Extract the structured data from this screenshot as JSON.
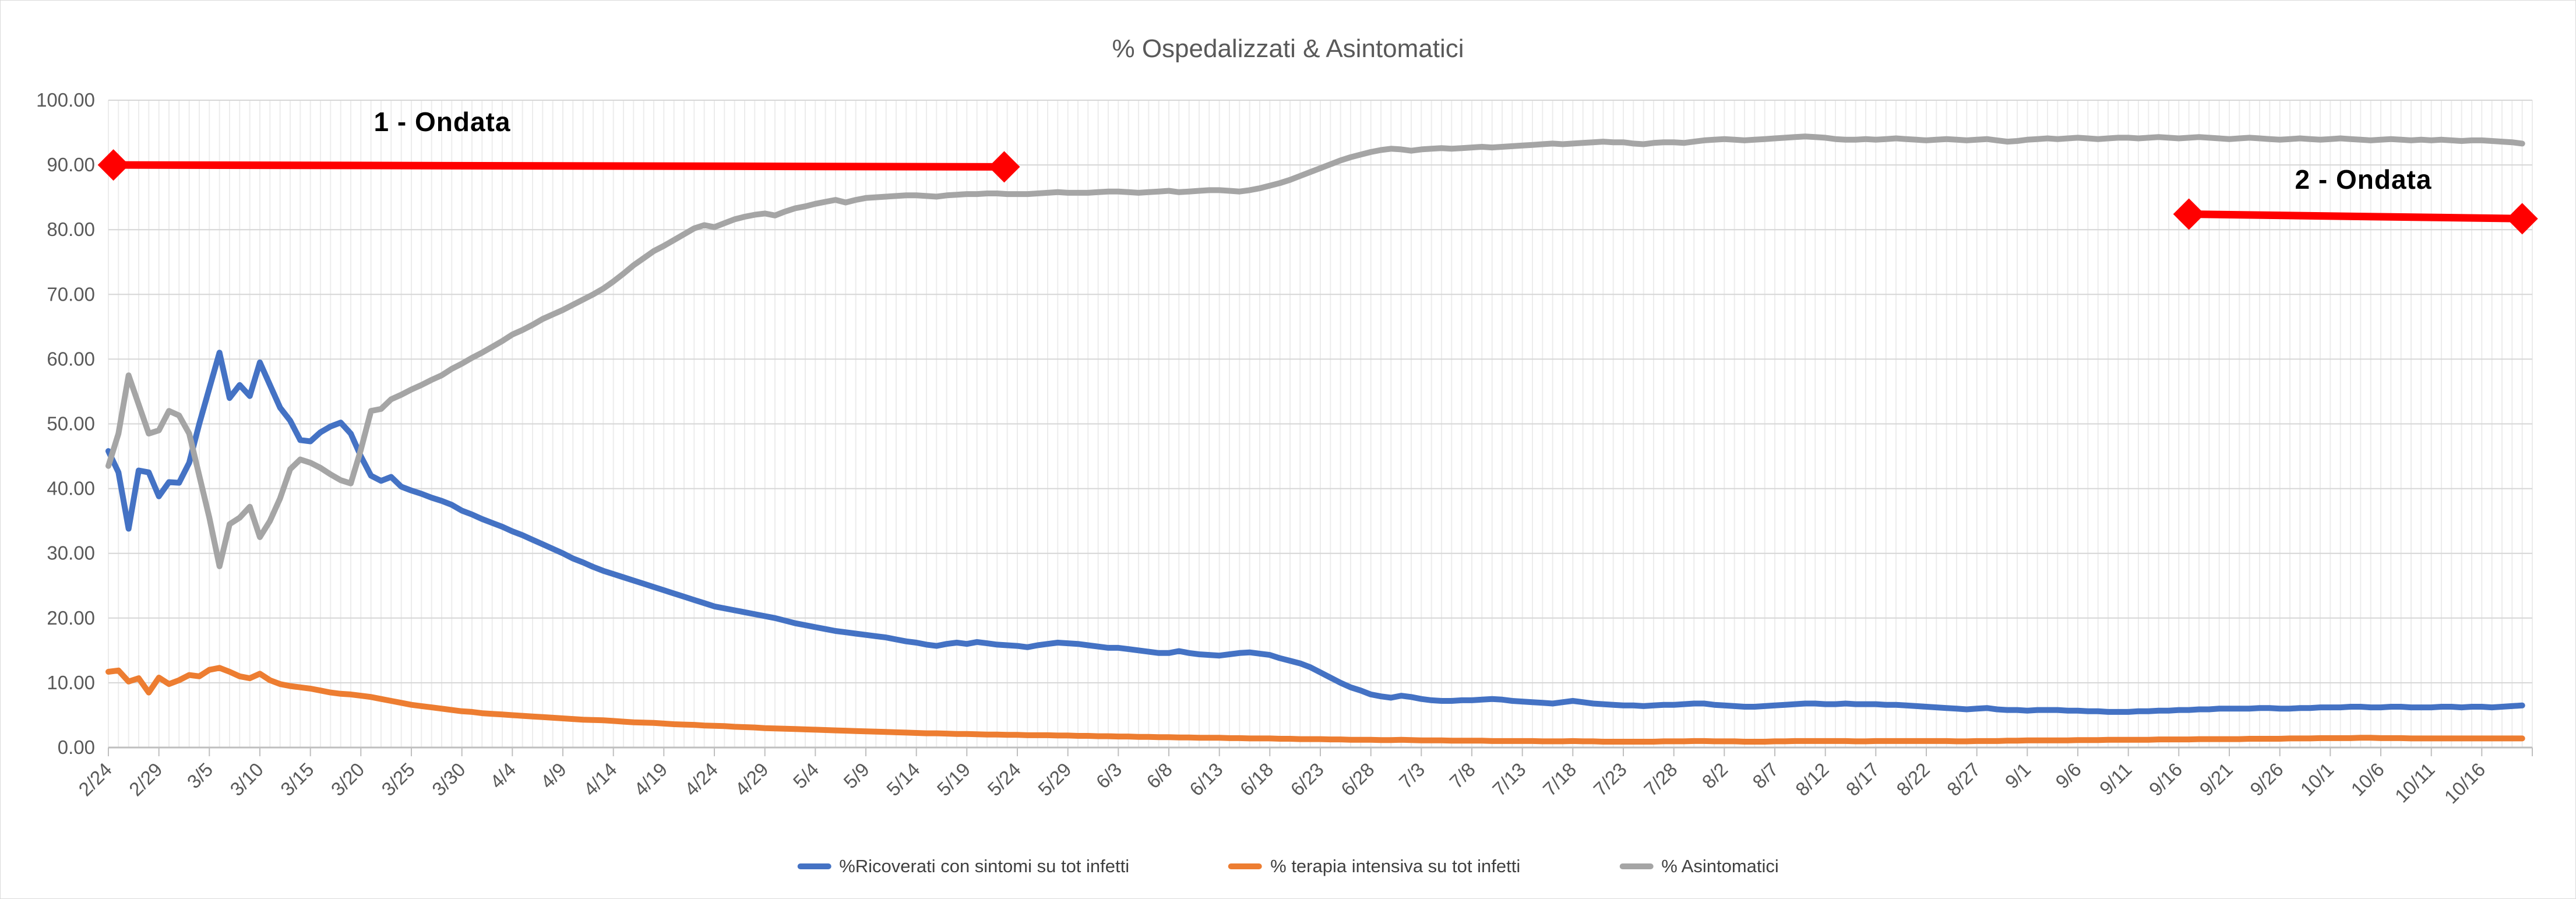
{
  "chart_data": {
    "type": "line",
    "title": "% Ospedalizzati & Asintomatici",
    "xlabel": "",
    "ylabel": "",
    "ylim": [
      0,
      100
    ],
    "y_step": 10,
    "y_tick_labels": [
      "0.00",
      "10.00",
      "20.00",
      "30.00",
      "40.00",
      "50.00",
      "60.00",
      "70.00",
      "80.00",
      "90.00",
      "100.00"
    ],
    "x_tick_labels": [
      "2/24",
      "2/29",
      "3/5",
      "3/10",
      "3/15",
      "3/20",
      "3/25",
      "3/30",
      "4/4",
      "4/9",
      "4/14",
      "4/19",
      "4/24",
      "4/29",
      "5/4",
      "5/9",
      "5/14",
      "5/19",
      "5/24",
      "5/29",
      "6/3",
      "6/8",
      "6/13",
      "6/18",
      "6/23",
      "6/28",
      "7/3",
      "7/8",
      "7/13",
      "7/18",
      "7/23",
      "7/28",
      "8/2",
      "8/7",
      "8/12",
      "8/17",
      "8/22",
      "8/27",
      "9/1",
      "9/6",
      "9/11",
      "9/16",
      "9/21",
      "9/26",
      "10/1",
      "10/6",
      "10/11",
      "10/16"
    ],
    "x_label_every_n_days": 5,
    "days_total": 240,
    "grid": {
      "vertical": "daily",
      "horizontal": "every 10 units"
    },
    "legend_position": "bottom",
    "axis_label_color": "#595959",
    "series": [
      {
        "name": "%Ricoverati con sintomi su tot infetti",
        "color": "#4472C4",
        "values": [
          45.8,
          42.5,
          33.8,
          42.8,
          42.5,
          38.8,
          41.0,
          40.9,
          44.0,
          50.0,
          55.5,
          61.0,
          54.0,
          56.0,
          54.3,
          59.5,
          56.0,
          52.5,
          50.5,
          47.5,
          47.3,
          48.7,
          49.6,
          50.2,
          48.5,
          45.0,
          42.0,
          41.2,
          41.8,
          40.3,
          39.7,
          39.2,
          38.6,
          38.1,
          37.5,
          36.6,
          36.0,
          35.3,
          34.7,
          34.1,
          33.4,
          32.8,
          32.1,
          31.4,
          30.7,
          30.0,
          29.2,
          28.6,
          27.9,
          27.3,
          26.8,
          26.3,
          25.8,
          25.3,
          24.8,
          24.3,
          23.8,
          23.3,
          22.8,
          22.3,
          21.8,
          21.5,
          21.2,
          20.9,
          20.6,
          20.3,
          20.0,
          19.6,
          19.2,
          18.9,
          18.6,
          18.3,
          18.0,
          17.8,
          17.6,
          17.4,
          17.2,
          17.0,
          16.7,
          16.4,
          16.2,
          15.9,
          15.7,
          16.0,
          16.2,
          16.0,
          16.3,
          16.1,
          15.9,
          15.8,
          15.7,
          15.5,
          15.8,
          16.0,
          16.2,
          16.1,
          16.0,
          15.8,
          15.6,
          15.4,
          15.4,
          15.2,
          15.0,
          14.8,
          14.6,
          14.6,
          14.9,
          14.6,
          14.4,
          14.3,
          14.2,
          14.4,
          14.6,
          14.7,
          14.5,
          14.3,
          13.8,
          13.4,
          13.0,
          12.4,
          11.6,
          10.8,
          10.0,
          9.3,
          8.8,
          8.2,
          7.9,
          7.7,
          8.0,
          7.8,
          7.5,
          7.3,
          7.2,
          7.2,
          7.3,
          7.3,
          7.4,
          7.5,
          7.4,
          7.2,
          7.1,
          7.0,
          6.9,
          6.8,
          7.0,
          7.2,
          7.0,
          6.8,
          6.7,
          6.6,
          6.5,
          6.5,
          6.4,
          6.5,
          6.6,
          6.6,
          6.7,
          6.8,
          6.8,
          6.6,
          6.5,
          6.4,
          6.3,
          6.3,
          6.4,
          6.5,
          6.6,
          6.7,
          6.8,
          6.8,
          6.7,
          6.7,
          6.8,
          6.7,
          6.7,
          6.7,
          6.6,
          6.6,
          6.5,
          6.4,
          6.3,
          6.2,
          6.1,
          6.0,
          5.9,
          6.0,
          6.1,
          5.9,
          5.8,
          5.8,
          5.7,
          5.8,
          5.8,
          5.8,
          5.7,
          5.7,
          5.6,
          5.6,
          5.5,
          5.5,
          5.5,
          5.6,
          5.6,
          5.7,
          5.7,
          5.8,
          5.8,
          5.9,
          5.9,
          6.0,
          6.0,
          6.0,
          6.0,
          6.1,
          6.1,
          6.0,
          6.0,
          6.1,
          6.1,
          6.2,
          6.2,
          6.2,
          6.3,
          6.3,
          6.2,
          6.2,
          6.3,
          6.3,
          6.2,
          6.2,
          6.2,
          6.3,
          6.3,
          6.2,
          6.3,
          6.3,
          6.2,
          6.3,
          6.4,
          6.5
        ]
      },
      {
        "name": "% terapia intensiva su tot infetti",
        "color": "#ED7D31",
        "values": [
          11.7,
          11.9,
          10.2,
          10.7,
          8.5,
          10.8,
          9.8,
          10.4,
          11.2,
          11.0,
          12.0,
          12.3,
          11.7,
          11.0,
          10.7,
          11.4,
          10.4,
          9.8,
          9.5,
          9.3,
          9.1,
          8.8,
          8.5,
          8.3,
          8.2,
          8.0,
          7.8,
          7.5,
          7.2,
          6.9,
          6.6,
          6.4,
          6.2,
          6.0,
          5.8,
          5.6,
          5.5,
          5.3,
          5.2,
          5.1,
          5.0,
          4.9,
          4.8,
          4.7,
          4.6,
          4.5,
          4.4,
          4.3,
          4.25,
          4.2,
          4.1,
          4.0,
          3.9,
          3.85,
          3.8,
          3.7,
          3.6,
          3.55,
          3.5,
          3.4,
          3.35,
          3.3,
          3.2,
          3.15,
          3.1,
          3.0,
          2.95,
          2.9,
          2.85,
          2.8,
          2.75,
          2.7,
          2.65,
          2.6,
          2.55,
          2.5,
          2.45,
          2.4,
          2.35,
          2.3,
          2.25,
          2.2,
          2.2,
          2.15,
          2.1,
          2.1,
          2.05,
          2.0,
          2.0,
          1.95,
          1.95,
          1.9,
          1.9,
          1.9,
          1.85,
          1.85,
          1.8,
          1.8,
          1.75,
          1.75,
          1.7,
          1.7,
          1.65,
          1.65,
          1.6,
          1.6,
          1.55,
          1.55,
          1.5,
          1.5,
          1.5,
          1.45,
          1.45,
          1.4,
          1.4,
          1.4,
          1.35,
          1.35,
          1.3,
          1.3,
          1.3,
          1.25,
          1.25,
          1.2,
          1.2,
          1.2,
          1.15,
          1.15,
          1.2,
          1.15,
          1.1,
          1.1,
          1.1,
          1.05,
          1.05,
          1.05,
          1.05,
          1.0,
          1.0,
          1.0,
          1.0,
          1.0,
          0.95,
          0.95,
          0.95,
          1.0,
          0.95,
          0.95,
          0.9,
          0.9,
          0.9,
          0.9,
          0.9,
          0.9,
          0.95,
          0.95,
          0.95,
          1.0,
          1.0,
          0.95,
          0.95,
          0.95,
          0.9,
          0.9,
          0.9,
          0.95,
          0.95,
          1.0,
          1.0,
          1.0,
          1.0,
          1.0,
          1.0,
          0.95,
          0.95,
          1.0,
          1.0,
          1.0,
          1.0,
          1.0,
          1.0,
          1.0,
          1.0,
          0.95,
          0.95,
          1.0,
          1.0,
          1.0,
          1.05,
          1.05,
          1.1,
          1.1,
          1.1,
          1.1,
          1.1,
          1.15,
          1.15,
          1.15,
          1.2,
          1.2,
          1.2,
          1.2,
          1.2,
          1.25,
          1.25,
          1.25,
          1.25,
          1.3,
          1.3,
          1.3,
          1.3,
          1.3,
          1.35,
          1.35,
          1.35,
          1.35,
          1.4,
          1.4,
          1.4,
          1.45,
          1.45,
          1.45,
          1.45,
          1.5,
          1.5,
          1.45,
          1.45,
          1.45,
          1.4,
          1.4,
          1.4,
          1.4,
          1.4,
          1.4,
          1.4,
          1.4,
          1.4,
          1.4,
          1.4,
          1.4
        ]
      },
      {
        "name": "% Asintomatici",
        "color": "#A5A5A5",
        "values": [
          43.5,
          48.5,
          57.5,
          53.0,
          48.5,
          49.0,
          52.0,
          51.3,
          48.5,
          42.0,
          35.5,
          28.0,
          34.5,
          35.5,
          37.2,
          32.5,
          35.0,
          38.5,
          43.0,
          44.5,
          44.0,
          43.2,
          42.2,
          41.3,
          40.8,
          46.0,
          52.0,
          52.3,
          53.8,
          54.5,
          55.3,
          56.0,
          56.8,
          57.5,
          58.5,
          59.3,
          60.2,
          61.0,
          61.9,
          62.8,
          63.8,
          64.5,
          65.3,
          66.2,
          66.9,
          67.6,
          68.4,
          69.2,
          70.0,
          70.9,
          72.0,
          73.2,
          74.5,
          75.6,
          76.7,
          77.5,
          78.4,
          79.3,
          80.2,
          80.7,
          80.4,
          81.0,
          81.6,
          82.0,
          82.3,
          82.5,
          82.2,
          82.8,
          83.3,
          83.6,
          84.0,
          84.3,
          84.6,
          84.2,
          84.6,
          84.9,
          85.0,
          85.1,
          85.2,
          85.3,
          85.3,
          85.2,
          85.1,
          85.3,
          85.4,
          85.5,
          85.5,
          85.6,
          85.6,
          85.5,
          85.5,
          85.5,
          85.6,
          85.7,
          85.8,
          85.7,
          85.7,
          85.7,
          85.8,
          85.9,
          85.9,
          85.8,
          85.7,
          85.8,
          85.9,
          86.0,
          85.8,
          85.9,
          86.0,
          86.1,
          86.1,
          86.0,
          85.9,
          86.1,
          86.4,
          86.8,
          87.2,
          87.7,
          88.3,
          88.9,
          89.5,
          90.1,
          90.7,
          91.2,
          91.6,
          92.0,
          92.3,
          92.5,
          92.4,
          92.2,
          92.4,
          92.5,
          92.6,
          92.5,
          92.6,
          92.7,
          92.8,
          92.7,
          92.8,
          92.9,
          93.0,
          93.1,
          93.2,
          93.3,
          93.2,
          93.3,
          93.4,
          93.5,
          93.6,
          93.5,
          93.5,
          93.3,
          93.2,
          93.4,
          93.5,
          93.5,
          93.4,
          93.6,
          93.8,
          93.9,
          94.0,
          93.9,
          93.8,
          93.9,
          94.0,
          94.1,
          94.2,
          94.3,
          94.4,
          94.3,
          94.2,
          94.0,
          93.9,
          93.9,
          94.0,
          93.9,
          94.0,
          94.1,
          94.0,
          93.9,
          93.8,
          93.9,
          94.0,
          93.9,
          93.8,
          93.9,
          94.0,
          93.8,
          93.6,
          93.7,
          93.9,
          94.0,
          94.1,
          94.0,
          94.1,
          94.2,
          94.1,
          94.0,
          94.1,
          94.2,
          94.2,
          94.1,
          94.2,
          94.3,
          94.2,
          94.1,
          94.2,
          94.3,
          94.2,
          94.1,
          94.0,
          94.1,
          94.2,
          94.1,
          94.0,
          93.9,
          94.0,
          94.1,
          94.0,
          93.9,
          94.0,
          94.1,
          94.0,
          93.9,
          93.8,
          93.9,
          94.0,
          93.9,
          93.8,
          93.9,
          93.8,
          93.9,
          93.8,
          93.7,
          93.8,
          93.8,
          93.7,
          93.6,
          93.5,
          93.3
        ]
      }
    ],
    "annotations": [
      {
        "label": "1 - Ondata",
        "color": "#FF0000",
        "value_start": 90.0,
        "value_end": 89.7,
        "day_start": 0.5,
        "day_end": 88.7,
        "date_start": "2/24",
        "date_end": "5/23",
        "label_day": 33,
        "label_value": 96.7
      },
      {
        "label": "2 - Ondata",
        "color": "#FF0000",
        "value_start": 82.4,
        "value_end": 81.7,
        "day_start": 206,
        "day_end": 239,
        "date_start": "9/17",
        "date_end": "10/20",
        "label_day": 223,
        "label_value": 87.8
      }
    ]
  }
}
